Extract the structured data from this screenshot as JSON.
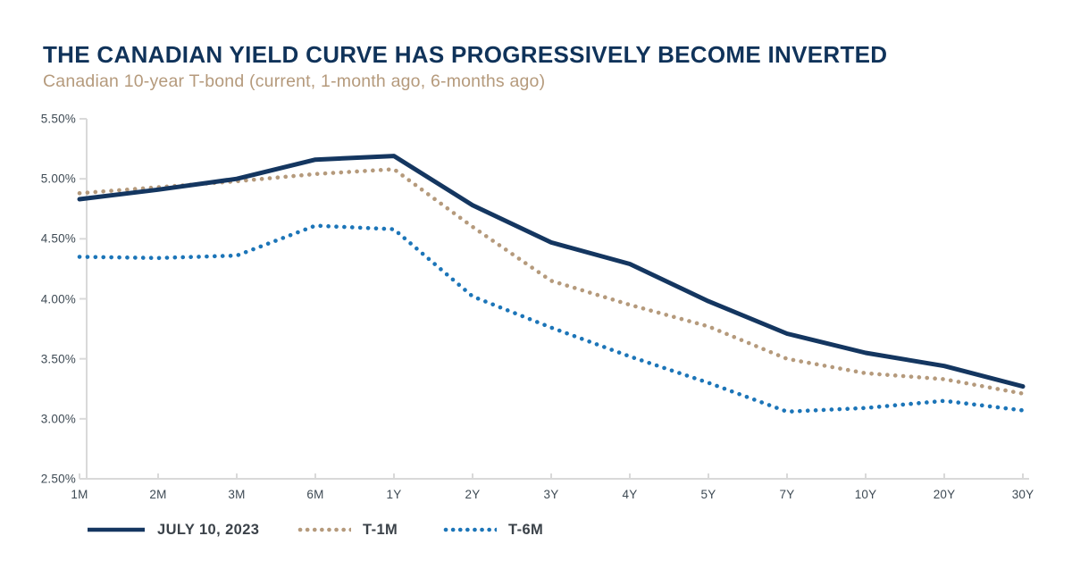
{
  "header": {
    "title": "THE CANADIAN YIELD CURVE HAS PROGRESSIVELY BECOME INVERTED",
    "subtitle": "Canadian 10-year T-bond (current, 1-month ago, 6-months ago)"
  },
  "colors": {
    "navy_title": "#10335a",
    "navy_line": "#143660",
    "tan": "#b59a7c",
    "blue": "#1c75b8",
    "axis_line": "#d9d9d9",
    "axis_text": "#3e4a54",
    "legend_text": "#3b4249"
  },
  "chart_data": {
    "type": "line",
    "title": "THE CANADIAN YIELD CURVE HAS PROGRESSIVELY BECOME INVERTED",
    "subtitle": "Canadian 10-year T-bond (current, 1-month ago, 6-months ago)",
    "categories": [
      "1M",
      "2M",
      "3M",
      "6M",
      "1Y",
      "2Y",
      "3Y",
      "4Y",
      "5Y",
      "7Y",
      "10Y",
      "20Y",
      "30Y"
    ],
    "series": [
      {
        "name": "JULY 10, 2023",
        "style": "solid",
        "color": "#143660",
        "values": [
          4.83,
          4.91,
          5.0,
          5.16,
          5.19,
          4.78,
          4.47,
          4.29,
          3.98,
          3.71,
          3.55,
          3.44,
          3.27
        ]
      },
      {
        "name": "T-1M",
        "style": "dotted",
        "color": "#b59a7c",
        "values": [
          4.88,
          4.93,
          4.98,
          5.04,
          5.08,
          4.6,
          4.15,
          3.95,
          3.77,
          3.5,
          3.38,
          3.33,
          3.21
        ]
      },
      {
        "name": "T-6M",
        "style": "dotted",
        "color": "#1c75b8",
        "values": [
          4.35,
          4.34,
          4.36,
          4.61,
          4.58,
          4.02,
          3.76,
          3.52,
          3.3,
          3.06,
          3.09,
          3.15,
          3.07
        ]
      }
    ],
    "ylim": [
      2.5,
      5.5
    ],
    "ytick_step": 0.5,
    "ytick_labels_top_to_bottom": [
      "5.50%",
      "5.00%",
      "4.50%",
      "4.00%",
      "3.50%",
      "3.00%",
      "2.50%"
    ],
    "yaxis_format": "percent",
    "grid": false,
    "legend_position": "bottom"
  }
}
